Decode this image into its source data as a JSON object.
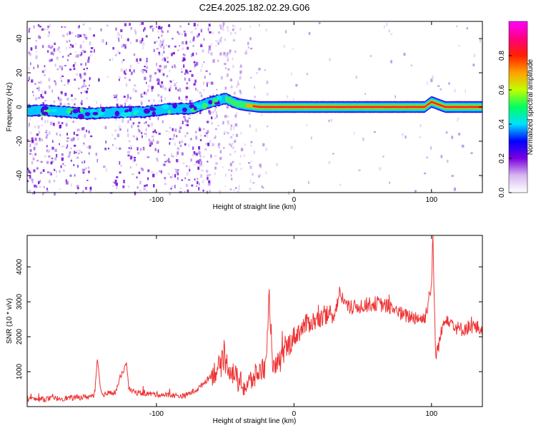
{
  "title": "C2E4.2025.182.02.29.G06",
  "chart_data": [
    {
      "type": "heatmap",
      "xlabel": "Height of straight line (km)",
      "ylabel": "Frequency (Hz)",
      "xlim": [
        -194,
        137
      ],
      "ylim": [
        -50,
        50
      ],
      "x_ticks": [
        -100,
        0,
        100
      ],
      "y_ticks": [
        -40,
        -20,
        0,
        20,
        40
      ],
      "ridge": {
        "description_x": [
          -194,
          -180,
          -165,
          -150,
          -130,
          -110,
          -90,
          -75,
          -60,
          -50,
          -42,
          -35,
          -25,
          -15,
          -5,
          0,
          20,
          40,
          60,
          80,
          95,
          100,
          110,
          120,
          137
        ],
        "frequency": [
          -2,
          -2,
          -3,
          -4,
          -3,
          -3,
          -1,
          -1,
          3,
          5,
          2,
          1,
          0,
          0,
          0,
          0,
          0,
          0,
          0,
          0,
          0,
          3,
          0,
          0,
          0
        ]
      },
      "colorbar": {
        "label": "Normalized spectral amplitude",
        "ticks": [
          0.0,
          0.2,
          0.4,
          0.6,
          0.8
        ],
        "range": [
          0,
          1
        ],
        "colors": [
          "#ffffff",
          "#d8b8f0",
          "#7a00e0",
          "#0000ff",
          "#00e0ff",
          "#00ff60",
          "#c0ff00",
          "#ffa000",
          "#ff2000",
          "#ff0080",
          "#ff00ff"
        ]
      }
    },
    {
      "type": "line",
      "xlabel": "Height of straight line (km)",
      "ylabel": "SNR (10 * v/v)",
      "xlim": [
        -194,
        137
      ],
      "ylim": [
        0,
        4900
      ],
      "x_ticks": [
        -100,
        0,
        100
      ],
      "y_ticks": [
        1000,
        2000,
        3000,
        4000
      ],
      "color": "#ee3333",
      "series": [
        {
          "x": [
            -194,
            -180,
            -160,
            -145,
            -143,
            -140,
            -130,
            -122,
            -120,
            -115,
            -100,
            -80,
            -70,
            -60,
            -55,
            -50,
            -40,
            -35,
            -30,
            -20,
            -18,
            -15,
            -10,
            -5,
            0,
            5,
            10,
            20,
            30,
            33,
            40,
            50,
            60,
            70,
            80,
            90,
            95,
            100,
            101,
            103,
            110,
            120,
            130,
            137
          ],
          "y": [
            200,
            220,
            250,
            300,
            1400,
            350,
            400,
            1250,
            500,
            400,
            350,
            300,
            500,
            900,
            1100,
            1300,
            700,
            550,
            800,
            1200,
            3150,
            1000,
            1300,
            1700,
            2000,
            2200,
            2400,
            2500,
            2700,
            3250,
            2800,
            2900,
            2950,
            2850,
            2600,
            2550,
            2500,
            3500,
            4850,
            1400,
            2600,
            2200,
            2300,
            2200
          ]
        }
      ]
    }
  ]
}
